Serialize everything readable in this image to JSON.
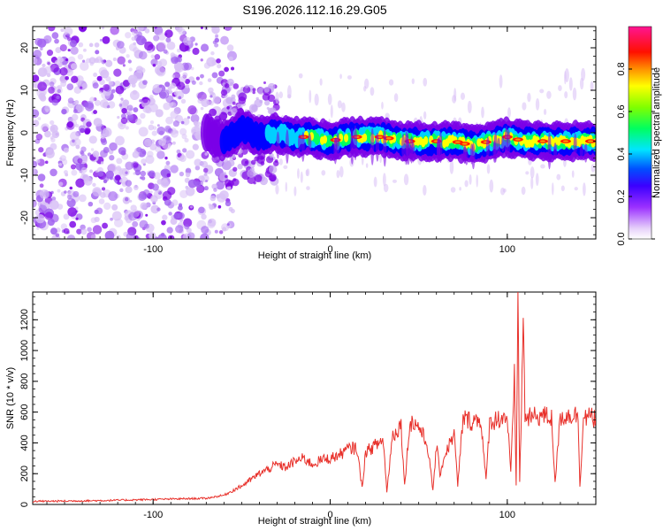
{
  "title": "S196.2026.112.16.29.G05",
  "chart_data": [
    {
      "type": "heatmap",
      "xlabel": "Height of straight line (km)",
      "ylabel": "Frequency (Hz)",
      "xlim": [
        -168,
        150
      ],
      "ylim": [
        -25,
        25
      ],
      "x_ticks": [
        -100,
        0,
        100
      ],
      "y_ticks": [
        -20,
        -10,
        0,
        10,
        20
      ],
      "colorbar": {
        "label": "Normalized spectral amplitude",
        "ticks": [
          "0.0",
          "0.2",
          "0.4",
          "0.6",
          "0.8"
        ],
        "tick_values": [
          0.0,
          0.2,
          0.4,
          0.6,
          0.8
        ],
        "range": [
          0,
          1
        ],
        "colors": [
          "#ffffff",
          "#d2b4f5",
          "#7a00e6",
          "#0000ff",
          "#00ffff",
          "#00ff00",
          "#ffff00",
          "#ff8000",
          "#ff0000",
          "#ff1493"
        ]
      },
      "ridge": {
        "x": [
          -70,
          -60,
          -50,
          -40,
          -30,
          -20,
          -10,
          0,
          10,
          20,
          30,
          40,
          50,
          60,
          70,
          80,
          90,
          100,
          110,
          120,
          130,
          140,
          150
        ],
        "frequency": [
          0,
          -2,
          1,
          -1,
          0,
          -1,
          -1,
          -2,
          -1,
          -1,
          -1,
          -2,
          -2,
          -2,
          -2,
          -3,
          -2,
          -1,
          -2,
          -2,
          -2,
          -2,
          -2
        ]
      }
    },
    {
      "type": "line",
      "xlabel": "Height of straight line (km)",
      "ylabel": "SNR (10 * v/v)",
      "xlim": [
        -168,
        150
      ],
      "ylim": [
        0,
        1380
      ],
      "x_ticks": [
        -100,
        0,
        100
      ],
      "y_ticks": [
        0,
        200,
        400,
        600,
        800,
        1000,
        1200
      ],
      "color": "#e8302a",
      "series": [
        {
          "x": [
            -168,
            -150,
            -130,
            -110,
            -90,
            -70,
            -60,
            -55,
            -50,
            -45,
            -40,
            -35,
            -30,
            -25,
            -20,
            -15,
            -10,
            -5,
            0,
            5,
            10,
            15,
            18,
            20,
            25,
            30,
            32,
            35,
            40,
            42,
            45,
            50,
            55,
            58,
            60,
            62,
            65,
            70,
            72,
            75,
            80,
            85,
            88,
            90,
            95,
            100,
            102,
            104,
            105,
            106,
            107,
            108,
            109,
            110,
            112,
            115,
            120,
            125,
            127,
            130,
            135,
            140,
            141,
            143,
            145,
            150
          ],
          "y": [
            20,
            22,
            25,
            30,
            35,
            40,
            60,
            90,
            120,
            160,
            200,
            230,
            260,
            240,
            280,
            300,
            260,
            290,
            300,
            320,
            360,
            370,
            110,
            340,
            380,
            420,
            80,
            440,
            520,
            120,
            540,
            510,
            380,
            90,
            380,
            200,
            330,
            460,
            120,
            560,
            540,
            560,
            150,
            530,
            560,
            570,
            200,
            820,
            120,
            1380,
            150,
            620,
            1220,
            580,
            560,
            570,
            580,
            560,
            150,
            570,
            580,
            580,
            120,
            560,
            570,
            560
          ]
        }
      ]
    }
  ]
}
